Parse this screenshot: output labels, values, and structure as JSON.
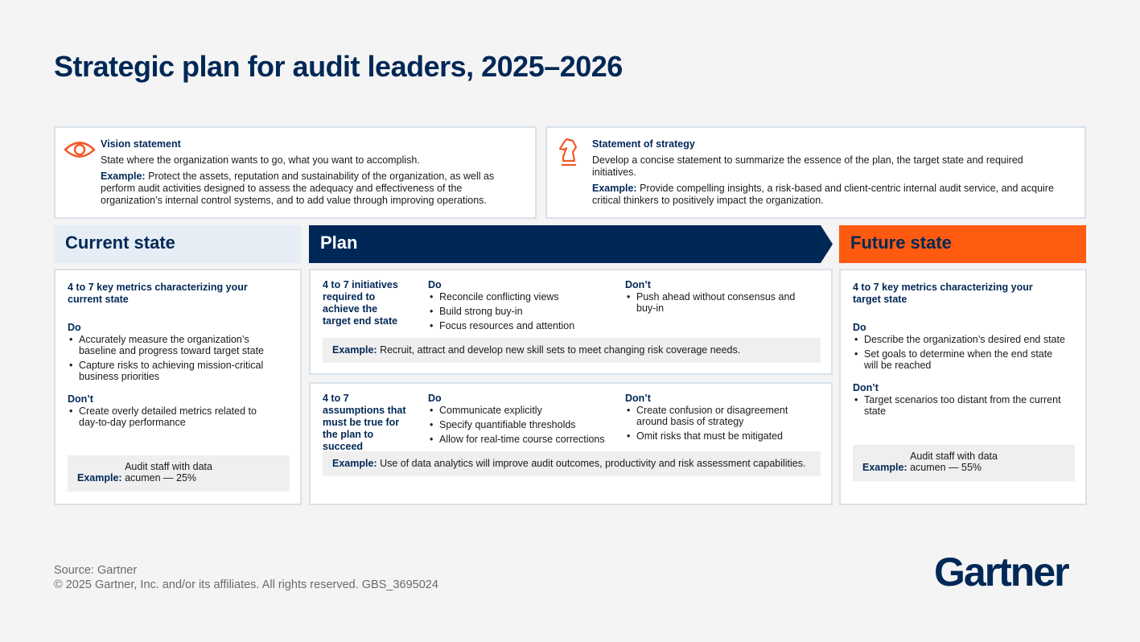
{
  "title": "Strategic plan for audit leaders, 2025–2026",
  "vision": {
    "heading": "Vision statement",
    "text": "State where the organization wants to go, what you want to accomplish.",
    "example_label": "Example:",
    "example_text": "Protect the assets, reputation and sustainability of the organization, as well as perform audit activities designed to assess the adequacy and effectiveness of the organization’s internal control systems, and to add value through improving operations."
  },
  "strategy": {
    "heading": "Statement of strategy",
    "text": "Develop a concise statement to summarize the essence of the plan, the target state and required initiatives.",
    "example_label": "Example:",
    "example_text": "Provide compelling insights, a risk-based and client-centric internal audit service, and acquire critical thinkers to positively impact the organization."
  },
  "current_state": {
    "header": "Current state",
    "intro": "4 to 7 key metrics characterizing your current state",
    "do_label": "Do",
    "do": [
      "Accurately measure the organization’s baseline and progress toward target state",
      "Capture risks to achieving mission-critical business priorities"
    ],
    "dont_label": "Don’t",
    "dont": [
      "Create overly detailed metrics related to day-to-day performance"
    ],
    "example_label": "Example:",
    "example_text": "Audit staff with data acumen — 25%"
  },
  "plan": {
    "header": "Plan",
    "initiatives": {
      "intro": "4 to 7 initiatives required to achieve the target end state",
      "do_label": "Do",
      "do": [
        "Reconcile conflicting views",
        "Build strong buy-in",
        "Focus resources and attention"
      ],
      "dont_label": "Don’t",
      "dont": [
        "Push ahead without consensus and buy-in"
      ],
      "example_label": "Example:",
      "example_text": "Recruit, attract and develop new skill sets to meet changing risk coverage needs."
    },
    "assumptions": {
      "intro": "4 to 7 assumptions that must be true for the plan to succeed",
      "do_label": "Do",
      "do": [
        "Communicate explicitly",
        "Specify quantifiable thresholds",
        "Allow for real-time course corrections"
      ],
      "dont_label": "Don’t",
      "dont": [
        "Create confusion or disagreement around basis of strategy",
        "Omit risks that must be mitigated"
      ],
      "example_label": "Example:",
      "example_text": "Use of data analytics will improve audit outcomes, productivity and risk assessment capabilities."
    }
  },
  "future_state": {
    "header": "Future state",
    "intro": "4 to 7 key metrics characterizing your target state",
    "do_label": "Do",
    "do": [
      "Describe the organization’s desired end state",
      "Set goals to determine when the end state will be reached"
    ],
    "dont_label": "Don’t",
    "dont": [
      "Target scenarios too distant from the current state"
    ],
    "example_label": "Example:",
    "example_text": "Audit staff with data acumen — 55%"
  },
  "footer": {
    "source": "Source: Gartner",
    "copyright": "© 2025 Gartner, Inc. and/or its affiliates. All rights reserved. GBS_3695024"
  },
  "logo": "Gartner"
}
